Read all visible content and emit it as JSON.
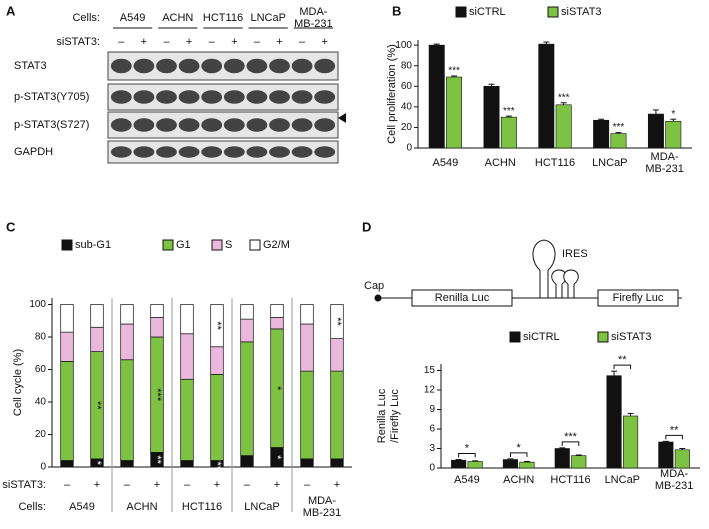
{
  "blot": {
    "label": "A",
    "cells_label": "Cells:",
    "cells": [
      "A549",
      "ACHN",
      "HCT116",
      "LNCaP",
      "MDA-\nMB-231"
    ],
    "treatment_label": "siSTAT3:",
    "lanes": [
      "–",
      "+",
      "–",
      "+",
      "–",
      "+",
      "–",
      "+",
      "–",
      "+"
    ],
    "rows": [
      "STAT3",
      "p-STAT3(Y705)",
      "p-STAT3(S727)",
      "GAPDH"
    ]
  },
  "construct": {
    "cap": "Cap",
    "ires": "IRES",
    "genes": [
      "Renilla Luc",
      "Firefly Luc"
    ]
  },
  "chart_data": [
    {
      "type": "bar",
      "label": "B",
      "ylabel": "Cell proliferation (%)",
      "categories": [
        "A549",
        "ACHN",
        "HCT116",
        "LNCaP",
        "MDA-\nMB-231"
      ],
      "ylim": [
        0,
        105
      ],
      "yticks": [
        0,
        20,
        40,
        60,
        80,
        100
      ],
      "series": [
        {
          "name": "siCTRL",
          "color": "#111111",
          "values": [
            100,
            60,
            101,
            27,
            33
          ],
          "errors": [
            1,
            2,
            2,
            1,
            4
          ]
        },
        {
          "name": "siSTAT3",
          "color": "#7dc242",
          "values": [
            69,
            30,
            42,
            14,
            26
          ],
          "errors": [
            1,
            1,
            2,
            1,
            2
          ]
        }
      ],
      "significance": [
        "***",
        "***",
        "***",
        "***",
        "*"
      ],
      "brackets": false
    },
    {
      "type": "stacked_bar",
      "label": "C",
      "ylabel": "Cell cycle (%)",
      "categories": [
        "–",
        "+",
        "–",
        "+",
        "–",
        "+",
        "–",
        "+",
        "–",
        "+"
      ],
      "category_label": "siSTAT3:",
      "group_label": "Cells:",
      "groups": [
        "A549",
        "ACHN",
        "HCT116",
        "LNCaP",
        "MDA-\nMB-231"
      ],
      "ylim": [
        0,
        104
      ],
      "yticks": [
        0,
        20,
        40,
        60,
        80,
        100
      ],
      "series": [
        {
          "name": "sub-G1",
          "color": "#111111",
          "values": [
            4,
            5,
            4,
            9,
            4,
            4,
            7,
            12,
            5,
            5
          ],
          "annotations": [
            null,
            "*",
            null,
            "**",
            null,
            "***",
            null,
            "*",
            null,
            null
          ]
        },
        {
          "name": "G1",
          "color": "#7dc242",
          "values": [
            61,
            66,
            62,
            71,
            50,
            53,
            70,
            73,
            54,
            54
          ],
          "annotations": [
            null,
            "**",
            null,
            "***",
            null,
            null,
            null,
            "*",
            null,
            null
          ]
        },
        {
          "name": "S",
          "color": "#eab8dc",
          "values": [
            18,
            15,
            22,
            12,
            28,
            17,
            14,
            7,
            29,
            20
          ],
          "annotations": [
            null,
            null,
            null,
            null,
            null,
            null,
            null,
            null,
            null,
            null
          ]
        },
        {
          "name": "G2/M",
          "color": "#ffffff",
          "values": [
            17,
            14,
            12,
            8,
            18,
            26,
            9,
            8,
            12,
            21
          ],
          "annotations": [
            null,
            null,
            null,
            null,
            null,
            "**",
            null,
            null,
            null,
            "**"
          ]
        }
      ]
    },
    {
      "type": "bar",
      "label": "D",
      "ylabel": [
        "Renilla Luc",
        "/Firefly Luc"
      ],
      "categories": [
        "A549",
        "ACHN",
        "HCT116",
        "LNCaP",
        "MDA-\nMB-231"
      ],
      "ylim": [
        0,
        16
      ],
      "yticks": [
        0,
        3,
        6,
        9,
        12,
        15
      ],
      "series": [
        {
          "name": "siCTRL",
          "color": "#111111",
          "values": [
            1.2,
            1.3,
            3.0,
            14.2,
            4.0
          ],
          "errors": [
            0.1,
            0.1,
            0.1,
            0.7,
            0.1
          ]
        },
        {
          "name": "siSTAT3",
          "color": "#7dc242",
          "values": [
            1.0,
            0.9,
            1.9,
            8.0,
            2.8
          ],
          "errors": [
            0.1,
            0.1,
            0.1,
            0.4,
            0.2
          ]
        }
      ],
      "significance": [
        "*",
        "*",
        "***",
        "**",
        "**"
      ],
      "brackets": true
    }
  ]
}
